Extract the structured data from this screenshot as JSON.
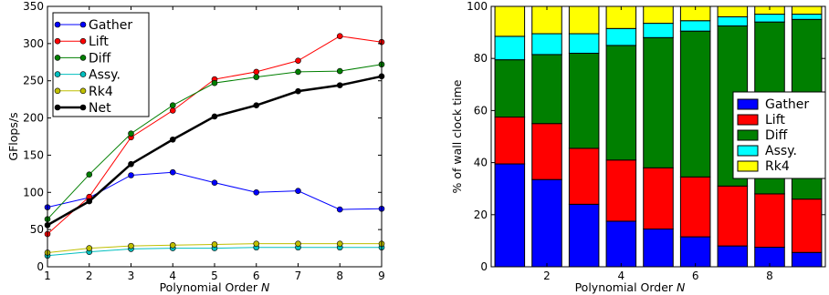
{
  "chart_data": [
    {
      "type": "line",
      "title": "",
      "xlabel": "Polynomial Order N",
      "ylabel": "GFlops/s",
      "xlim": [
        1,
        9
      ],
      "ylim": [
        0,
        350
      ],
      "x": [
        1,
        2,
        3,
        4,
        5,
        6,
        7,
        8,
        9
      ],
      "xticks": [
        1,
        2,
        3,
        4,
        5,
        6,
        7,
        8,
        9
      ],
      "yticks": [
        0,
        50,
        100,
        150,
        200,
        250,
        300,
        350
      ],
      "grid": false,
      "legend_position": "top-left",
      "series": [
        {
          "name": "Gather",
          "color": "#0000ff",
          "marker": "circle",
          "values": [
            80,
            93,
            123,
            127,
            113,
            100,
            102,
            77,
            78
          ]
        },
        {
          "name": "Lift",
          "color": "#ff0000",
          "marker": "circle",
          "values": [
            44,
            94,
            174,
            210,
            252,
            262,
            277,
            310,
            302
          ]
        },
        {
          "name": "Diff",
          "color": "#007f00",
          "marker": "circle",
          "values": [
            64,
            124,
            179,
            217,
            247,
            255,
            262,
            263,
            272
          ]
        },
        {
          "name": "Assy.",
          "color": "#00bfbf",
          "marker": "circle",
          "values": [
            15,
            20,
            24,
            25,
            25,
            26,
            26,
            26,
            26
          ]
        },
        {
          "name": "Rk4",
          "color": "#bfbf00",
          "marker": "circle",
          "values": [
            19,
            25,
            28,
            29,
            30,
            31,
            31,
            31,
            31
          ]
        },
        {
          "name": "Net",
          "color": "#000000",
          "marker": "circle",
          "bold": true,
          "values": [
            56,
            88,
            138,
            171,
            202,
            217,
            236,
            244,
            256
          ]
        }
      ]
    },
    {
      "type": "bar",
      "stacked": true,
      "title": "",
      "xlabel": "Polynomial Order N",
      "ylabel": "% of wall clock time",
      "ylim": [
        0,
        100
      ],
      "categories": [
        1,
        2,
        3,
        4,
        5,
        6,
        7,
        8,
        9
      ],
      "xticks": [
        2,
        4,
        6,
        8
      ],
      "yticks": [
        0,
        20,
        40,
        60,
        80,
        100
      ],
      "grid": false,
      "legend_position": "center-right",
      "series": [
        {
          "name": "Gather",
          "color": "#0000ff",
          "values": [
            39.5,
            33.5,
            24,
            17.5,
            14.5,
            11.5,
            8,
            7.5,
            5.5
          ]
        },
        {
          "name": "Lift",
          "color": "#ff0000",
          "values": [
            18,
            21.5,
            21.5,
            23.5,
            23.5,
            23,
            23,
            20.5,
            20.5
          ]
        },
        {
          "name": "Diff",
          "color": "#007f00",
          "values": [
            22,
            26.5,
            36.5,
            44,
            50,
            56,
            61.5,
            66,
            69
          ]
        },
        {
          "name": "Assy.",
          "color": "#00ffff",
          "values": [
            9,
            8,
            7.5,
            6.5,
            5.5,
            4,
            3.5,
            3,
            2
          ]
        },
        {
          "name": "Rk4",
          "color": "#ffff00",
          "values": [
            11.5,
            10.5,
            10.5,
            8.5,
            6.5,
            5.5,
            4,
            3,
            3
          ]
        }
      ]
    }
  ]
}
